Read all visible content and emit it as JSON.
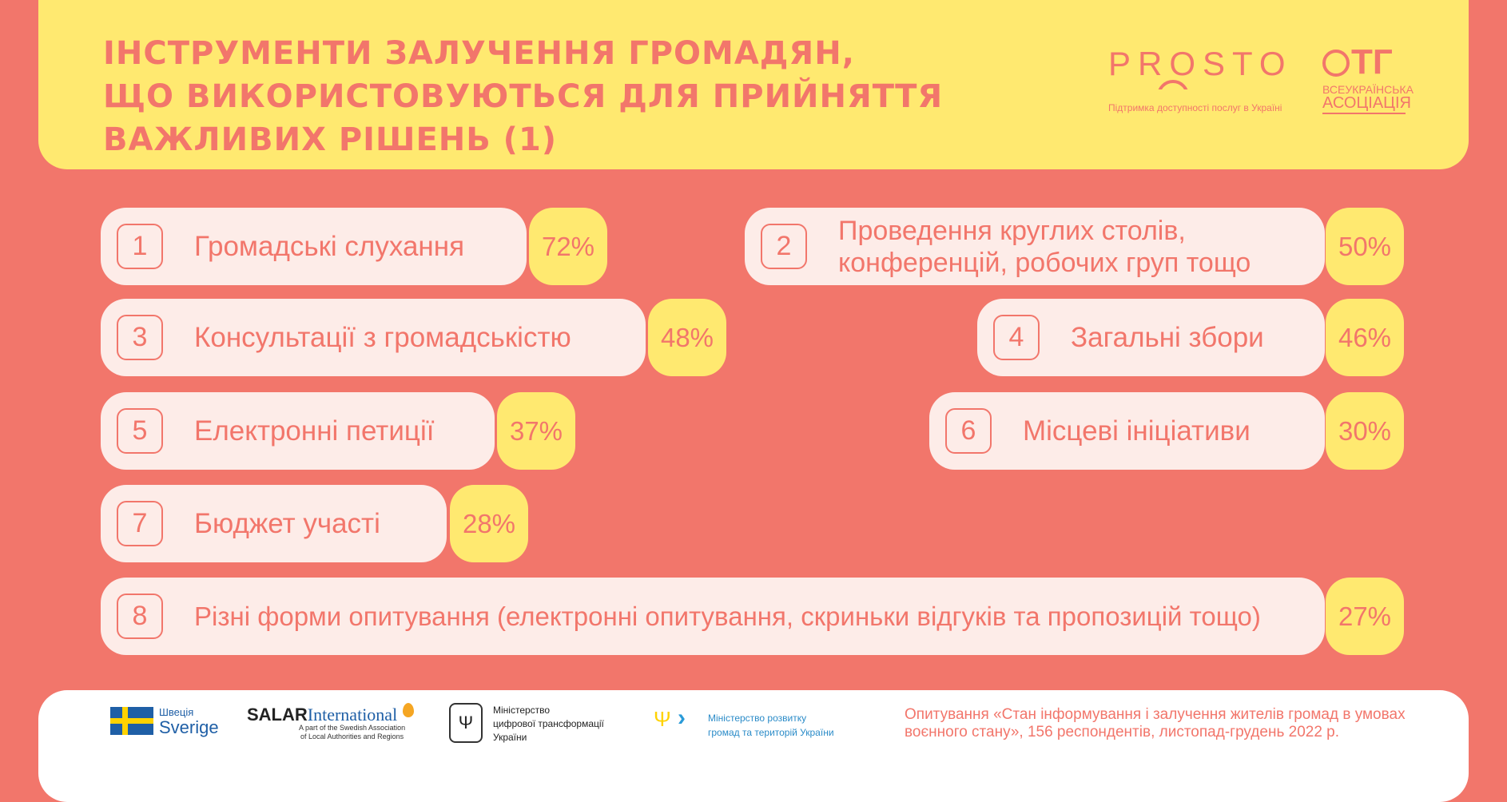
{
  "title": [
    "ІНСТРУМЕНТИ ЗАЛУЧЕННЯ ГРОМАДЯН,",
    "ЩО ВИКОРИСТОВУЮТЬСЯ ДЛЯ ПРИЙНЯТТЯ",
    "ВАЖЛИВИХ РІШЕНЬ (1)"
  ],
  "logos": {
    "prosto": "PROSTO",
    "prosto_sub": "Підтримка доступності послуг в Україні",
    "otg": "ТГ",
    "otg_line1": "ВСЕУКРАЇНСЬКА",
    "otg_line2": "АСОЦІАЦІЯ"
  },
  "items": [
    {
      "num": "1",
      "label": "Громадські слухання",
      "pct": "72%"
    },
    {
      "num": "2",
      "label": "Проведення круглих столів,\nконференцій, робочих груп тощо",
      "pct": "50%"
    },
    {
      "num": "3",
      "label": "Консультації з громадськістю",
      "pct": "48%"
    },
    {
      "num": "4",
      "label": "Загальні збори",
      "pct": "46%"
    },
    {
      "num": "5",
      "label": "Електронні петиції",
      "pct": "37%"
    },
    {
      "num": "6",
      "label": "Місцеві ініціативи",
      "pct": "30%"
    },
    {
      "num": "7",
      "label": "Бюджет участі",
      "pct": "28%"
    },
    {
      "num": "8",
      "label": "Різні форми опитування (електронні опитування, скриньки відгуків та пропозицій тощо)",
      "pct": "27%"
    }
  ],
  "footer": {
    "sweden_1": "Швеція",
    "sweden_2": "Sverige",
    "salar_1": "SALAR",
    "salar_2": "International",
    "salar_sub": "A part of the Swedish Association\nof Local Authorities and Regions",
    "mdt": "Міністерство\nцифрової трансформації\nУкраїни",
    "mr": "Міністерство розвитку\nгромад та територій України",
    "survey": "Опитування «Стан інформування і залучення жителів громад в умовах\nвоєнного стану», 156 респондентів, листопад-грудень 2022 р."
  },
  "colors": {
    "background": "#F2766B",
    "yellow": "#FFE970",
    "pill": "#FDECE8"
  }
}
